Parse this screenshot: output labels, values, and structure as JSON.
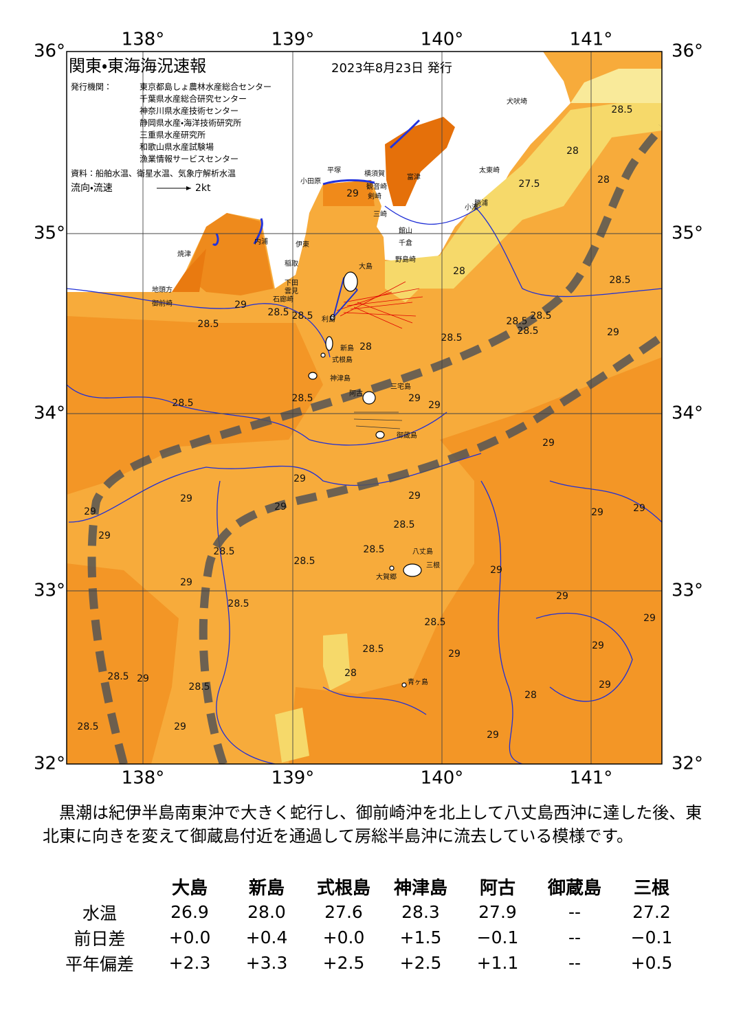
{
  "header": {
    "title": "関東・東海海況速報",
    "date": "2023年8月23日 発行",
    "agency_label": "発行機関：",
    "agencies": [
      "東京都島しょ農林水産総合センター",
      "千葉県水産総合研究センター",
      "神奈川県水産技術センター",
      "静岡県水産・海洋技術研究所",
      "三重県水産研究所",
      "和歌山県水産試験場",
      "漁業情報サービスセンター"
    ],
    "source": "資料：船舶水温、衛星水温、気象庁解析水温",
    "flow_legend": "流向・流速",
    "flow_scale": "2kt"
  },
  "map": {
    "lon_labels": [
      "138°",
      "139°",
      "140°",
      "141°"
    ],
    "lat_labels": [
      "36°",
      "35°",
      "34°",
      "33°",
      "32°"
    ],
    "place_names": [
      "犬吠埼",
      "太東崎",
      "勝浦",
      "小湊",
      "館山",
      "千倉",
      "野島崎",
      "富津",
      "横須賀",
      "観音崎",
      "剣崎",
      "三崎",
      "平塚",
      "小田原",
      "伊東",
      "稲取",
      "下田",
      "石廊崎",
      "雲見",
      "内浦",
      "焼津",
      "地頭方",
      "御前崎",
      "大島",
      "利島",
      "新島",
      "式根島",
      "神津島",
      "三宅島",
      "阿古",
      "御蔵島",
      "八丈島",
      "三根",
      "大賀郷",
      "青ヶ島"
    ],
    "contour_labels": [
      29,
      28.5,
      28,
      28,
      27.5,
      29,
      28.5,
      28.5,
      28.5,
      28,
      28.5,
      28.5,
      28.5,
      28.5,
      28.5,
      29,
      28,
      28.5,
      28.5,
      29,
      29,
      29,
      29,
      29,
      29,
      29,
      29,
      29,
      28.5,
      28.5,
      28.5,
      28.5,
      29,
      28.5,
      29,
      29,
      29,
      29,
      29,
      28.5,
      28.5,
      29,
      29,
      28,
      29,
      28.5,
      28.5,
      29,
      28,
      28.5,
      29,
      29
    ]
  },
  "summary": "黒潮は紀伊半島南東沖で大きく蛇行し、御前崎沖を北上して八丈島西沖に達した後、東北東に向きを変えて御蔵島付近を通過して房総半島沖に流去している模様です。",
  "table": {
    "columns": [
      "大島",
      "新島",
      "式根島",
      "神津島",
      "阿古",
      "御蔵島",
      "三根"
    ],
    "rows": [
      {
        "label": "水温",
        "values": [
          "26.9",
          "28.0",
          "27.6",
          "28.3",
          "27.9",
          "--",
          "27.2"
        ]
      },
      {
        "label": "前日差",
        "values": [
          "+0.0",
          "+0.4",
          "+0.0",
          "+1.5",
          "−0.1",
          "--",
          "−0.1"
        ]
      },
      {
        "label": "平年偏差",
        "values": [
          "+2.3",
          "+3.3",
          "+2.5",
          "+2.5",
          "+1.1",
          "--",
          "+0.5"
        ]
      }
    ]
  }
}
